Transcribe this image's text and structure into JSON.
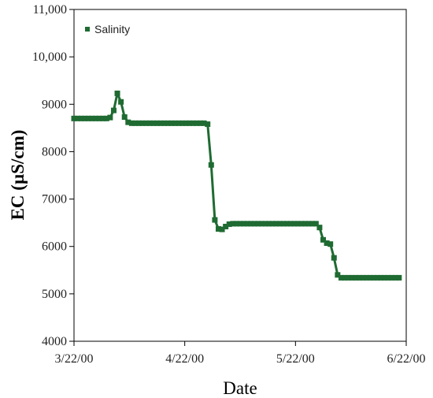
{
  "chart_data": {
    "type": "line",
    "xlabel": "Date",
    "ylabel": "EC (µS/cm)",
    "x_ticks": [
      "3/22/00",
      "4/22/00",
      "5/22/00",
      "6/22/00"
    ],
    "y_ticks": [
      "4000",
      "5000",
      "6000",
      "7000",
      "8000",
      "9000",
      "10,000",
      "11,000"
    ],
    "x_range": [
      "2000-03-22",
      "2000-06-22"
    ],
    "ylim": [
      4000,
      11000
    ],
    "legend_position": "top-left",
    "grid": false,
    "series": [
      {
        "name": "Salinity",
        "color": "#1f6b32",
        "marker": "square",
        "points": [
          [
            "2000-03-22",
            8700
          ],
          [
            "2000-03-23",
            8700
          ],
          [
            "2000-03-24",
            8700
          ],
          [
            "2000-03-25",
            8700
          ],
          [
            "2000-03-26",
            8700
          ],
          [
            "2000-03-27",
            8700
          ],
          [
            "2000-03-28",
            8700
          ],
          [
            "2000-03-29",
            8700
          ],
          [
            "2000-03-30",
            8700
          ],
          [
            "2000-03-31",
            8700
          ],
          [
            "2000-04-01",
            8720
          ],
          [
            "2000-04-02",
            8870
          ],
          [
            "2000-04-03",
            9230
          ],
          [
            "2000-04-04",
            9050
          ],
          [
            "2000-04-05",
            8730
          ],
          [
            "2000-04-06",
            8620
          ],
          [
            "2000-04-07",
            8600
          ],
          [
            "2000-04-08",
            8600
          ],
          [
            "2000-04-09",
            8600
          ],
          [
            "2000-04-10",
            8600
          ],
          [
            "2000-04-11",
            8600
          ],
          [
            "2000-04-12",
            8600
          ],
          [
            "2000-04-13",
            8600
          ],
          [
            "2000-04-14",
            8600
          ],
          [
            "2000-04-15",
            8600
          ],
          [
            "2000-04-16",
            8600
          ],
          [
            "2000-04-17",
            8600
          ],
          [
            "2000-04-18",
            8600
          ],
          [
            "2000-04-19",
            8600
          ],
          [
            "2000-04-20",
            8600
          ],
          [
            "2000-04-21",
            8600
          ],
          [
            "2000-04-22",
            8600
          ],
          [
            "2000-04-23",
            8600
          ],
          [
            "2000-04-24",
            8600
          ],
          [
            "2000-04-25",
            8600
          ],
          [
            "2000-04-26",
            8600
          ],
          [
            "2000-04-27",
            8600
          ],
          [
            "2000-04-28",
            8580
          ],
          [
            "2000-04-29",
            7720
          ],
          [
            "2000-04-30",
            6560
          ],
          [
            "2000-05-01",
            6370
          ],
          [
            "2000-05-02",
            6360
          ],
          [
            "2000-05-03",
            6420
          ],
          [
            "2000-05-04",
            6470
          ],
          [
            "2000-05-05",
            6480
          ],
          [
            "2000-05-06",
            6480
          ],
          [
            "2000-05-07",
            6480
          ],
          [
            "2000-05-08",
            6480
          ],
          [
            "2000-05-09",
            6480
          ],
          [
            "2000-05-10",
            6480
          ],
          [
            "2000-05-11",
            6480
          ],
          [
            "2000-05-12",
            6480
          ],
          [
            "2000-05-13",
            6480
          ],
          [
            "2000-05-14",
            6480
          ],
          [
            "2000-05-15",
            6480
          ],
          [
            "2000-05-16",
            6480
          ],
          [
            "2000-05-17",
            6480
          ],
          [
            "2000-05-18",
            6480
          ],
          [
            "2000-05-19",
            6480
          ],
          [
            "2000-05-20",
            6480
          ],
          [
            "2000-05-21",
            6480
          ],
          [
            "2000-05-22",
            6480
          ],
          [
            "2000-05-23",
            6480
          ],
          [
            "2000-05-24",
            6480
          ],
          [
            "2000-05-25",
            6480
          ],
          [
            "2000-05-26",
            6480
          ],
          [
            "2000-05-27",
            6480
          ],
          [
            "2000-05-28",
            6480
          ],
          [
            "2000-05-29",
            6400
          ],
          [
            "2000-05-30",
            6140
          ],
          [
            "2000-05-31",
            6070
          ],
          [
            "2000-06-01",
            6050
          ],
          [
            "2000-06-02",
            5760
          ],
          [
            "2000-06-03",
            5400
          ],
          [
            "2000-06-04",
            5340
          ],
          [
            "2000-06-05",
            5340
          ],
          [
            "2000-06-06",
            5340
          ],
          [
            "2000-06-07",
            5340
          ],
          [
            "2000-06-08",
            5340
          ],
          [
            "2000-06-09",
            5340
          ],
          [
            "2000-06-10",
            5340
          ],
          [
            "2000-06-11",
            5340
          ],
          [
            "2000-06-12",
            5340
          ],
          [
            "2000-06-13",
            5340
          ],
          [
            "2000-06-14",
            5340
          ],
          [
            "2000-06-15",
            5340
          ],
          [
            "2000-06-16",
            5340
          ],
          [
            "2000-06-17",
            5340
          ],
          [
            "2000-06-18",
            5340
          ],
          [
            "2000-06-19",
            5340
          ],
          [
            "2000-06-20",
            5340
          ]
        ]
      }
    ]
  }
}
